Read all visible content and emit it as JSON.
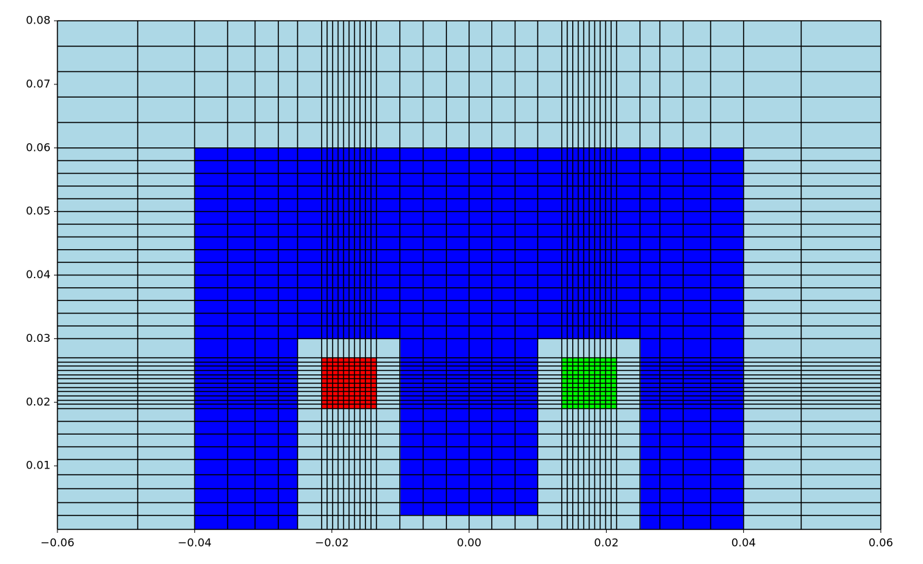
{
  "chart_data": {
    "type": "mesh",
    "xlim": [
      -0.06,
      0.06
    ],
    "ylim": [
      0,
      0.08
    ],
    "xticks": [
      {
        "value": -0.06,
        "label": "−0.06"
      },
      {
        "value": -0.04,
        "label": "−0.04"
      },
      {
        "value": -0.02,
        "label": "−0.02"
      },
      {
        "value": 0,
        "label": "0.00"
      },
      0.02,
      0.04,
      0.06
    ],
    "yticks": [
      0.01,
      0.02,
      0.03,
      0.04,
      0.05,
      0.06,
      0.07,
      0.08
    ],
    "mesh_color": "#000000",
    "regions": [
      {
        "color": "#add8e6",
        "x": [
          -0.06,
          0.06
        ],
        "y": [
          0,
          0.08
        ]
      },
      {
        "color": "#0000ff",
        "x": [
          -0.04,
          0.04
        ],
        "y": [
          0.03,
          0.06
        ]
      },
      {
        "color": "#0000ff",
        "x": [
          -0.04,
          -0.025
        ],
        "y": [
          0,
          0.03
        ]
      },
      {
        "color": "#0000ff",
        "x": [
          -0.01,
          0.01
        ],
        "y": [
          0.0022,
          0.03
        ]
      },
      {
        "color": "#0000ff",
        "x": [
          0.025,
          0.04
        ],
        "y": [
          0,
          0.03
        ]
      },
      {
        "color": "#ff0000",
        "x": [
          -0.0215,
          -0.0135
        ],
        "y": [
          0.019,
          0.027
        ]
      },
      {
        "color": "#00ff00",
        "x": [
          0.0135,
          0.0215
        ],
        "y": [
          0.019,
          0.027
        ]
      }
    ],
    "x_nodes": [
      -0.06,
      -0.0483,
      -0.04,
      -0.0352,
      -0.0312,
      -0.0278,
      -0.025,
      -0.0215,
      -0.0207,
      -0.0199,
      -0.0191,
      -0.0183,
      -0.0175,
      -0.0167,
      -0.0159,
      -0.0151,
      -0.0143,
      -0.0135,
      -0.0101,
      -0.0067,
      -0.0033,
      0,
      0.0033,
      0.0067,
      0.01,
      0.0135,
      0.0143,
      0.0151,
      0.0159,
      0.0167,
      0.0175,
      0.0183,
      0.0191,
      0.0199,
      0.0207,
      0.0215,
      0.0249,
      0.0278,
      0.0312,
      0.0352,
      0.04,
      0.0484,
      0.06
    ],
    "y_nodes": [
      0,
      0.0022,
      0.0042,
      0.0064,
      0.0086,
      0.011,
      0.013,
      0.015,
      0.017,
      0.019,
      0.0197,
      0.0203,
      0.021,
      0.0217,
      0.0223,
      0.023,
      0.0237,
      0.0243,
      0.025,
      0.0257,
      0.0263,
      0.027,
      0.03,
      0.032,
      0.034,
      0.036,
      0.038,
      0.04,
      0.042,
      0.044,
      0.046,
      0.048,
      0.05,
      0.052,
      0.054,
      0.056,
      0.058,
      0.06,
      0.064,
      0.068,
      0.072,
      0.076,
      0.08
    ]
  }
}
